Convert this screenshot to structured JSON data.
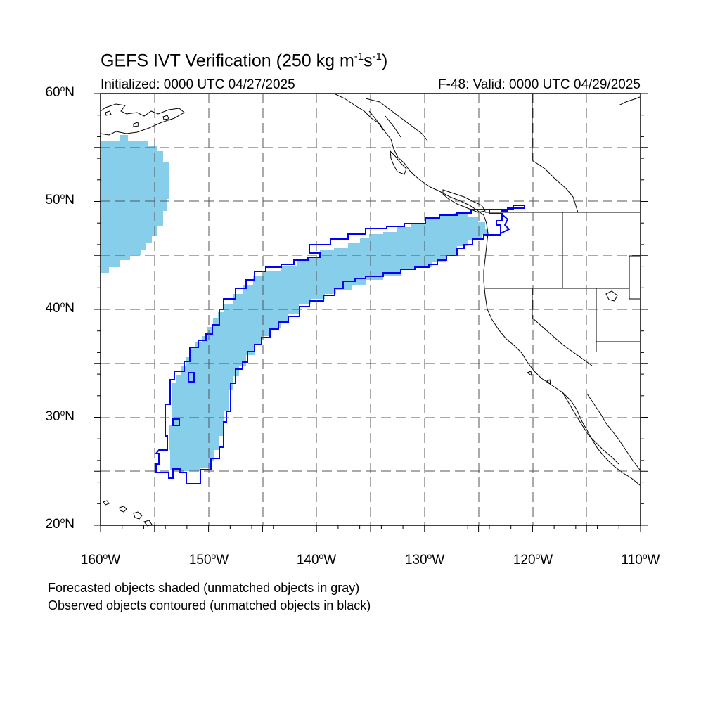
{
  "title": {
    "main": "GEFS IVT Verification (250 kg m",
    "exp1": "-1",
    "mid": "s",
    "exp2": "-1",
    "end": ")"
  },
  "subtitle_left": "Initialized: 0000 UTC 04/27/2025",
  "subtitle_right": "F-48: Valid: 0000 UTC 04/29/2025",
  "lat_labels": [
    {
      "num": "60",
      "suf": "N"
    },
    {
      "num": "50",
      "suf": "N"
    },
    {
      "num": "40",
      "suf": "N"
    },
    {
      "num": "30",
      "suf": "N"
    },
    {
      "num": "20",
      "suf": "N"
    }
  ],
  "lon_labels": [
    {
      "num": "160",
      "suf": "W"
    },
    {
      "num": "150",
      "suf": "W"
    },
    {
      "num": "140",
      "suf": "W"
    },
    {
      "num": "130",
      "suf": "W"
    },
    {
      "num": "120",
      "suf": "W"
    },
    {
      "num": "110",
      "suf": "W"
    }
  ],
  "notes": [
    "Forecasted objects shaded (unmatched objects in gray)",
    "Observed objects contoured (unmatched objects in black)"
  ],
  "colors": {
    "forecast_fill": "#87ceeb",
    "observed_contour": "#0000ff",
    "coastline": "#000000",
    "grid": "#555555"
  }
}
